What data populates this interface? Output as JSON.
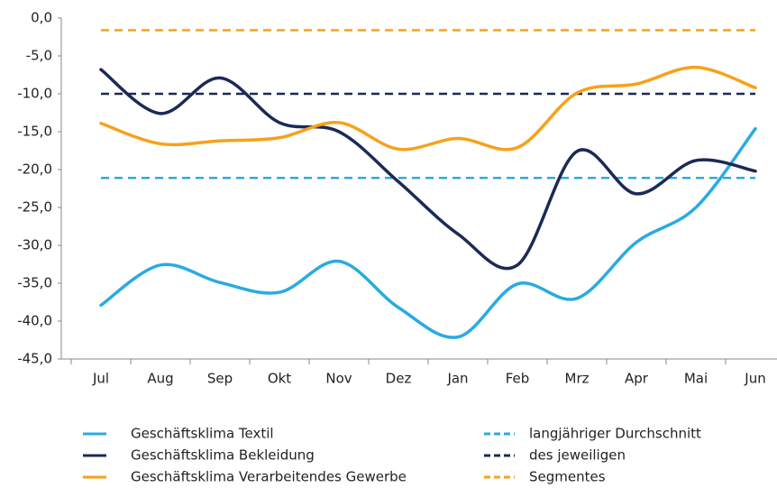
{
  "chart_data": {
    "type": "line",
    "categories": [
      "Jul",
      "Aug",
      "Sep",
      "Okt",
      "Nov",
      "Dez",
      "Jan",
      "Feb",
      "Mrz",
      "Apr",
      "Mai",
      "Jun"
    ],
    "ylim": [
      -45,
      0
    ],
    "yticks": [
      {
        "value": 0,
        "label": "0,0"
      },
      {
        "value": -5,
        "label": "-5,0"
      },
      {
        "value": -10,
        "label": "-10,0"
      },
      {
        "value": -15,
        "label": "-15,0"
      },
      {
        "value": -20,
        "label": "-20,0"
      },
      {
        "value": -25,
        "label": "-25,0"
      },
      {
        "value": -30,
        "label": "-30,0"
      },
      {
        "value": -35,
        "label": "-35,0"
      },
      {
        "value": -40,
        "label": "-40,0"
      },
      {
        "value": -45,
        "label": "-45,0"
      }
    ],
    "series": [
      {
        "name": "Geschäftsklima Textil",
        "color": "#29abe2",
        "values": [
          -37.9,
          -32.6,
          -34.9,
          -36.2,
          -32.1,
          -38.2,
          -42.1,
          -35.1,
          -37.0,
          -29.6,
          -25.0,
          -14.6
        ]
      },
      {
        "name": "Geschäftsklima Bekleidung",
        "color": "#1b2a55",
        "values": [
          -6.8,
          -12.6,
          -7.9,
          -13.8,
          -15.0,
          -21.6,
          -28.5,
          -32.6,
          -17.6,
          -23.2,
          -18.8,
          -20.2
        ]
      },
      {
        "name": "Geschäftsklima Verarbeitendes Gewerbe",
        "color": "#f7a11a",
        "values": [
          -13.9,
          -16.6,
          -16.2,
          -15.8,
          -13.8,
          -17.3,
          -15.9,
          -17.1,
          -9.9,
          -8.7,
          -6.5,
          -9.2
        ]
      },
      {
        "name": "langjähriger Durchschnitt",
        "color": "#29abe2",
        "dashed": true,
        "values": [
          -21.1,
          -21.1,
          -21.1,
          -21.1,
          -21.1,
          -21.1,
          -21.1,
          -21.1,
          -21.1,
          -21.1,
          -21.1,
          -21.1
        ]
      },
      {
        "name": "des jeweiligen",
        "color": "#1b2a55",
        "dashed": true,
        "values": [
          -10,
          -10,
          -10,
          -10,
          -10,
          -10,
          -10,
          -10,
          -10,
          -10,
          -10,
          -10
        ]
      },
      {
        "name": "Segmentes",
        "color": "#f7a11a",
        "dashed": true,
        "values": [
          -1.6,
          -1.6,
          -1.6,
          -1.6,
          -1.6,
          -1.6,
          -1.6,
          -1.6,
          -1.6,
          -1.6,
          -1.6,
          -1.6
        ]
      }
    ]
  }
}
